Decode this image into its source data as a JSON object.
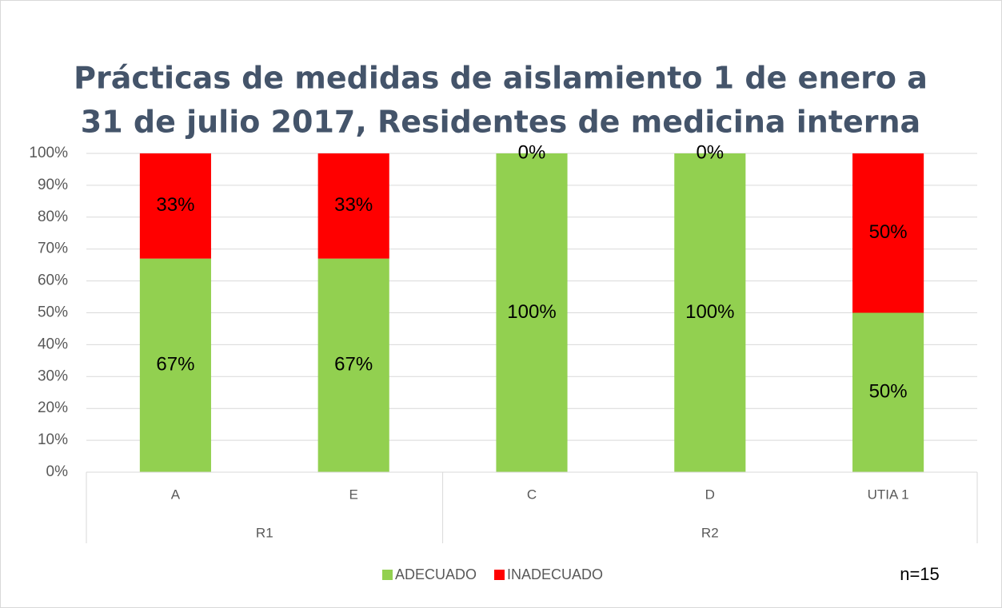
{
  "chart_data": {
    "type": "stacked_bar",
    "title": [
      "Prácticas de medidas de aislamiento 1 de enero a",
      "31 de julio 2017, Residentes de medicina interna"
    ],
    "groups": [
      {
        "name": "R1",
        "categories": [
          "A",
          "E"
        ]
      },
      {
        "name": "R2",
        "categories": [
          "C",
          "D",
          "UTIA 1"
        ]
      }
    ],
    "series": [
      {
        "name": "ADECUADO",
        "color": "#92d050",
        "values": [
          67,
          67,
          100,
          100,
          50
        ],
        "value_labels": [
          "67%",
          "67%",
          "100%",
          "100%",
          "50%"
        ]
      },
      {
        "name": "INADECUADO",
        "color": "#ff0000",
        "values": [
          33,
          33,
          0,
          0,
          50
        ],
        "value_labels": [
          "33%",
          "33%",
          "0%",
          "0%",
          "50%"
        ]
      }
    ],
    "ylim": [
      0,
      100
    ],
    "yticks": [
      {
        "value": 0,
        "label": "0%"
      },
      {
        "value": 10,
        "label": "10%"
      },
      {
        "value": 20,
        "label": "20%"
      },
      {
        "value": 30,
        "label": "30%"
      },
      {
        "value": 40,
        "label": "40%"
      },
      {
        "value": 50,
        "label": "50%"
      },
      {
        "value": 60,
        "label": "60%"
      },
      {
        "value": 70,
        "label": "70%"
      },
      {
        "value": 80,
        "label": "80%"
      },
      {
        "value": 90,
        "label": "90%"
      },
      {
        "value": 100,
        "label": "100%"
      }
    ],
    "grid": true,
    "legend": "bottom",
    "annotation": "n=15"
  }
}
